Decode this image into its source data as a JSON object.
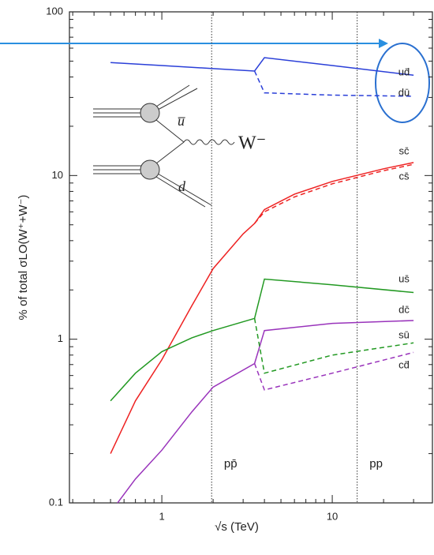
{
  "chart_data": {
    "type": "line",
    "y_label": "% of total σLO(W⁺+W⁻)",
    "x_label": "√s   (TeV)",
    "log_x": true,
    "log_y": true,
    "xlim": [
      0.287,
      38.7
    ],
    "ylim": [
      0.1,
      100
    ],
    "xticks": [
      1,
      10
    ],
    "xminorticks": [
      0.3,
      0.4,
      0.5,
      0.6,
      0.7,
      0.8,
      0.9,
      2,
      3,
      4,
      5,
      6,
      7,
      8,
      9,
      20,
      30
    ],
    "yticks": [
      0.1,
      1,
      10,
      100
    ],
    "yminorticks": [
      0.2,
      0.3,
      0.4,
      0.5,
      0.6,
      0.7,
      0.8,
      0.9,
      2,
      3,
      4,
      5,
      6,
      7,
      8,
      9,
      20,
      30,
      40,
      50,
      60,
      70,
      80,
      90
    ],
    "vlines": [
      {
        "x": 1.96,
        "label": "pp̄"
      },
      {
        "x": 14,
        "label": "pp"
      }
    ],
    "diagram_labels": [
      "u̅",
      "d",
      "W⁻"
    ],
    "series": [
      {
        "name": "ud̄",
        "color": "#2a3fd8",
        "style": "solid",
        "x": [
          0.5,
          1,
          2,
          3.5,
          4,
          10,
          30
        ],
        "values": [
          49,
          47,
          45,
          43.5,
          52.5,
          47,
          41
        ]
      },
      {
        "name": "dū",
        "color": "#2a3fd8",
        "style": "dashed",
        "x": [
          3.5,
          4,
          10,
          30
        ],
        "values": [
          43.5,
          32,
          31,
          30.5
        ]
      },
      {
        "name": "sc̄",
        "color": "#ee2222",
        "style": "solid",
        "x": [
          0.5,
          0.7,
          1,
          1.5,
          2,
          3,
          3.5,
          4,
          6,
          10,
          20,
          30
        ],
        "values": [
          0.2,
          0.42,
          0.75,
          1.6,
          2.7,
          4.4,
          5.1,
          6.2,
          7.7,
          9.2,
          11,
          12
        ]
      },
      {
        "name": "cs̄",
        "color": "#ee2222",
        "style": "dashed",
        "x": [
          3.5,
          4,
          6,
          10,
          20,
          30
        ],
        "values": [
          5.1,
          6,
          7.4,
          8.9,
          10.7,
          11.7
        ]
      },
      {
        "name": "us̄",
        "color": "#229922",
        "style": "solid",
        "x": [
          0.5,
          0.7,
          1,
          1.5,
          2,
          3.5,
          4,
          10,
          30
        ],
        "values": [
          0.42,
          0.62,
          0.84,
          1.02,
          1.13,
          1.34,
          2.33,
          2.15,
          1.93
        ]
      },
      {
        "name": "dc̄",
        "color": "#9933bb",
        "style": "solid",
        "x": [
          0.55,
          0.7,
          1,
          1.5,
          2,
          3.5,
          4,
          10,
          30
        ],
        "values": [
          0.1,
          0.14,
          0.21,
          0.36,
          0.51,
          0.71,
          1.13,
          1.25,
          1.3
        ]
      },
      {
        "name": "sū",
        "color": "#229922",
        "style": "dashed",
        "x": [
          3.5,
          4,
          10,
          30
        ],
        "values": [
          1.34,
          0.62,
          0.8,
          0.95
        ]
      },
      {
        "name": "cd̄",
        "color": "#9933bb",
        "style": "dashed",
        "x": [
          3.5,
          4,
          10,
          30
        ],
        "values": [
          0.71,
          0.49,
          0.62,
          0.83
        ]
      }
    ]
  }
}
